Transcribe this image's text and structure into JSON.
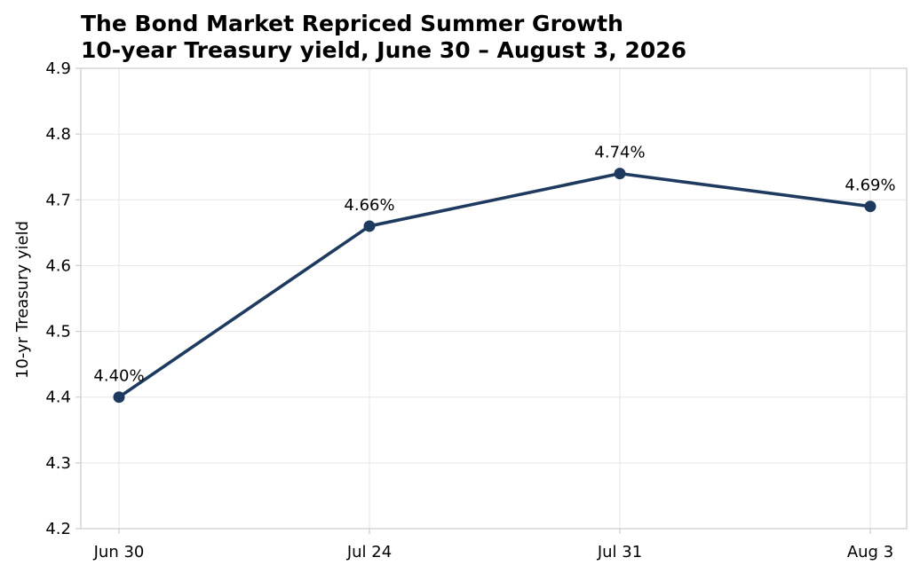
{
  "chart_data": {
    "type": "line",
    "title": "The Bond Market Repriced Summer Growth",
    "subtitle": "10-year Treasury yield, June 30 – August 3, 2026",
    "ylabel": "10-yr Treasury yield",
    "xlabel": "",
    "categories": [
      "Jun 30",
      "Jul 24",
      "Jul 31",
      "Aug 3"
    ],
    "series": [
      {
        "values": [
          4.4,
          4.66,
          4.74,
          4.69
        ],
        "data_labels": [
          "4.40%",
          "4.66%",
          "4.74%",
          "4.69%"
        ],
        "color": "#1f3a5f"
      }
    ],
    "ylim": [
      4.2,
      4.9
    ],
    "yticks": [
      "4.2",
      "4.3",
      "4.4",
      "4.5",
      "4.6",
      "4.7",
      "4.8",
      "4.9"
    ],
    "grid": true,
    "legend": "none"
  }
}
